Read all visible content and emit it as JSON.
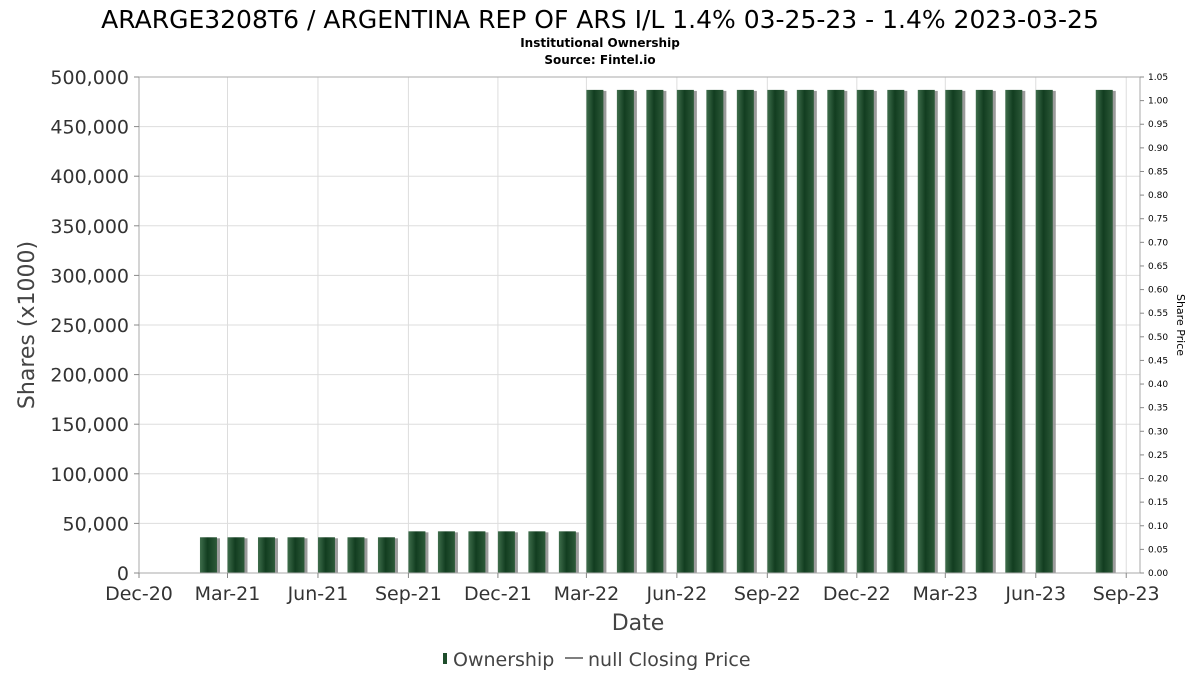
{
  "chart_data": {
    "type": "bar",
    "title": "ARARGE3208T6 / ARGENTINA REP OF ARS I/L 1.4% 03-25-23 - 1.4% 2023-03-25",
    "subtitle_lines": [
      "Institutional Ownership",
      "Source: Fintel.io"
    ],
    "xlabel": "Date",
    "ylabel": "Shares (x1000)",
    "y2label": "Share Price",
    "ylim": [
      0,
      500000
    ],
    "y2lim": [
      0,
      1.05
    ],
    "yticks": [
      "0",
      "50,000",
      "100,000",
      "150,000",
      "200,000",
      "250,000",
      "300,000",
      "350,000",
      "400,000",
      "450,000",
      "500,000"
    ],
    "y2ticks": [
      "0.00",
      "0.05",
      "0.10",
      "0.15",
      "0.20",
      "0.25",
      "0.30",
      "0.35",
      "0.40",
      "0.45",
      "0.50",
      "0.55",
      "0.60",
      "0.65",
      "0.70",
      "0.75",
      "0.80",
      "0.85",
      "0.90",
      "0.95",
      "1.00",
      "1.05"
    ],
    "xticks": [
      "Dec-20",
      "Mar-21",
      "Jun-21",
      "Sep-21",
      "Dec-21",
      "Mar-22",
      "Jun-22",
      "Sep-22",
      "Dec-22",
      "Mar-23",
      "Jun-23",
      "Sep-23"
    ],
    "xlim": [
      "2020-12-01",
      "2023-09-15"
    ],
    "grid": true,
    "legend_position": "bottom-center",
    "series": [
      {
        "name": "Ownership",
        "color": "#1e4d2b",
        "x": [
          "2021-02-01",
          "2021-03-01",
          "2021-04-01",
          "2021-05-01",
          "2021-06-01",
          "2021-07-01",
          "2021-08-01",
          "2021-09-01",
          "2021-10-01",
          "2021-11-01",
          "2021-12-01",
          "2022-01-01",
          "2022-02-01",
          "2022-03-01",
          "2022-04-01",
          "2022-05-01",
          "2022-06-01",
          "2022-07-01",
          "2022-08-01",
          "2022-09-01",
          "2022-10-01",
          "2022-11-01",
          "2022-12-01",
          "2023-01-01",
          "2023-02-01",
          "2023-03-01",
          "2023-04-01",
          "2023-05-01",
          "2023-06-01",
          "2023-08-01"
        ],
        "values": [
          36000,
          36000,
          36000,
          36000,
          36000,
          36000,
          36000,
          42000,
          42000,
          42000,
          42000,
          42000,
          42000,
          487000,
          487000,
          487000,
          487000,
          487000,
          487000,
          487000,
          487000,
          487000,
          487000,
          487000,
          487000,
          487000,
          487000,
          487000,
          487000,
          487000
        ]
      },
      {
        "name": "null Closing Price",
        "color": "#555555",
        "values": []
      }
    ]
  }
}
